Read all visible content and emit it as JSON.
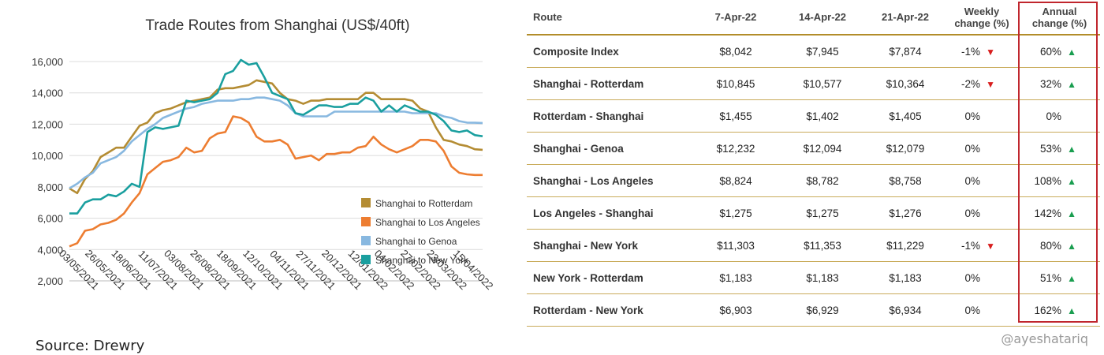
{
  "source": "Source: Drewry",
  "watermark": "@ayeshatariq",
  "chart_data": {
    "type": "line",
    "title": "Trade Routes from Shanghai (US$/40ft)",
    "ylim": [
      2000,
      16000
    ],
    "yticks": [
      "2,000",
      "4,000",
      "6,000",
      "8,000",
      "10,000",
      "12,000",
      "14,000",
      "16,000"
    ],
    "x_tick_labels": [
      "03/05/2021",
      "26/05/2021",
      "18/06/2021",
      "11/07/2021",
      "03/08/2021",
      "26/08/2021",
      "18/09/2021",
      "12/10/2021",
      "04/11/2021",
      "27/11/2021",
      "20/12/2021",
      "12/01/2022",
      "04/02/2022",
      "27/02/2022",
      "23/03/2022",
      "15/04/2022"
    ],
    "grid": true,
    "legend_position": "bottom-right",
    "x": [
      "2021-04-15",
      "2021-04-22",
      "2021-04-29",
      "2021-05-06",
      "2021-05-13",
      "2021-05-20",
      "2021-05-27",
      "2021-06-03",
      "2021-06-10",
      "2021-06-17",
      "2021-06-24",
      "2021-07-01",
      "2021-07-08",
      "2021-07-15",
      "2021-07-22",
      "2021-07-29",
      "2021-08-05",
      "2021-08-12",
      "2021-08-19",
      "2021-08-26",
      "2021-09-02",
      "2021-09-09",
      "2021-09-16",
      "2021-09-23",
      "2021-09-30",
      "2021-10-07",
      "2021-10-14",
      "2021-10-21",
      "2021-10-28",
      "2021-11-04",
      "2021-11-11",
      "2021-11-18",
      "2021-11-25",
      "2021-12-02",
      "2021-12-09",
      "2021-12-16",
      "2021-12-23",
      "2021-12-30",
      "2022-01-06",
      "2022-01-13",
      "2022-01-20",
      "2022-01-27",
      "2022-02-03",
      "2022-02-10",
      "2022-02-17",
      "2022-02-24",
      "2022-03-03",
      "2022-03-10",
      "2022-03-17",
      "2022-03-24",
      "2022-03-31",
      "2022-04-07",
      "2022-04-14",
      "2022-04-21"
    ],
    "series": [
      {
        "name": "Shanghai to Rotterdam",
        "color": "#b48c33",
        "values": [
          7900,
          7600,
          8500,
          9000,
          9900,
          10200,
          10500,
          10500,
          11200,
          11900,
          12100,
          12700,
          12900,
          13000,
          13200,
          13400,
          13500,
          13600,
          13700,
          14200,
          14300,
          14300,
          14400,
          14500,
          14800,
          14700,
          14600,
          14000,
          13600,
          13500,
          13300,
          13500,
          13500,
          13600,
          13600,
          13600,
          13600,
          13600,
          14000,
          14000,
          13600,
          13600,
          13600,
          13600,
          13500,
          13000,
          12800,
          11800,
          11000,
          10900,
          10700,
          10600,
          10400,
          10364
        ]
      },
      {
        "name": "Shanghai to Los Angeles",
        "color": "#ed7d31",
        "values": [
          4200,
          4400,
          5200,
          5300,
          5600,
          5700,
          5900,
          6300,
          7000,
          7600,
          8800,
          9200,
          9600,
          9700,
          9900,
          10500,
          10200,
          10300,
          11100,
          11400,
          11500,
          12500,
          12400,
          12100,
          11200,
          10900,
          10900,
          11000,
          10700,
          9800,
          9900,
          10000,
          9700,
          10100,
          10100,
          10200,
          10200,
          10500,
          10600,
          11200,
          10700,
          10400,
          10200,
          10400,
          10600,
          11000,
          11000,
          10900,
          10300,
          9300,
          8900,
          8800,
          8760,
          8758
        ]
      },
      {
        "name": "Shanghai to Genoa",
        "color": "#88b8e0",
        "values": [
          7900,
          8200,
          8600,
          8900,
          9500,
          9700,
          9900,
          10300,
          10900,
          11300,
          11700,
          12000,
          12400,
          12600,
          12800,
          13000,
          13100,
          13300,
          13400,
          13500,
          13500,
          13500,
          13600,
          13600,
          13700,
          13700,
          13600,
          13500,
          13200,
          12700,
          12500,
          12500,
          12500,
          12500,
          12800,
          12800,
          12800,
          12800,
          12800,
          12800,
          12800,
          12800,
          12800,
          12800,
          12700,
          12700,
          12700,
          12700,
          12500,
          12400,
          12200,
          12100,
          12090,
          12079
        ]
      },
      {
        "name": "Shanghai to New York",
        "color": "#1a9f9f",
        "values": [
          6300,
          6300,
          7000,
          7200,
          7200,
          7500,
          7400,
          7700,
          8200,
          8000,
          11500,
          11800,
          11700,
          11800,
          11900,
          13500,
          13400,
          13500,
          13600,
          14000,
          15200,
          15400,
          16100,
          15800,
          15900,
          15000,
          14000,
          13800,
          13600,
          12700,
          12600,
          12900,
          13200,
          13200,
          13100,
          13100,
          13300,
          13300,
          13700,
          13500,
          12800,
          13200,
          12800,
          13200,
          13000,
          12800,
          12800,
          12600,
          12200,
          11600,
          11500,
          11600,
          11300,
          11229
        ]
      }
    ]
  },
  "table": {
    "headers": {
      "route": "Route",
      "d1": "7-Apr-22",
      "d2": "14-Apr-22",
      "d3": "21-Apr-22",
      "weekly_l1": "Weekly",
      "weekly_l2": "change (%)",
      "annual_l1": "Annual",
      "annual_l2": "change (%)"
    },
    "rows": [
      {
        "route": "Composite Index",
        "d1": "$8,042",
        "d2": "$7,945",
        "d3": "$7,874",
        "weekly": "-1%",
        "weekly_arrow": "down",
        "annual": "60%",
        "annual_arrow": "up"
      },
      {
        "route": "Shanghai - Rotterdam",
        "d1": "$10,845",
        "d2": "$10,577",
        "d3": "$10,364",
        "weekly": "-2%",
        "weekly_arrow": "down",
        "annual": "32%",
        "annual_arrow": "up"
      },
      {
        "route": "Rotterdam - Shanghai",
        "d1": "$1,455",
        "d2": "$1,402",
        "d3": "$1,405",
        "weekly": "0%",
        "weekly_arrow": "none",
        "annual": "0%",
        "annual_arrow": "none"
      },
      {
        "route": "Shanghai - Genoa",
        "d1": "$12,232",
        "d2": "$12,094",
        "d3": "$12,079",
        "weekly": "0%",
        "weekly_arrow": "none",
        "annual": "53%",
        "annual_arrow": "up"
      },
      {
        "route": "Shanghai - Los Angeles",
        "d1": "$8,824",
        "d2": "$8,782",
        "d3": "$8,758",
        "weekly": "0%",
        "weekly_arrow": "none",
        "annual": "108%",
        "annual_arrow": "up"
      },
      {
        "route": "Los Angeles - Shanghai",
        "d1": "$1,275",
        "d2": "$1,275",
        "d3": "$1,276",
        "weekly": "0%",
        "weekly_arrow": "none",
        "annual": "142%",
        "annual_arrow": "up"
      },
      {
        "route": "Shanghai - New York",
        "d1": "$11,303",
        "d2": "$11,353",
        "d3": "$11,229",
        "weekly": "-1%",
        "weekly_arrow": "down",
        "annual": "80%",
        "annual_arrow": "up"
      },
      {
        "route": "New York - Rotterdam",
        "d1": "$1,183",
        "d2": "$1,183",
        "d3": "$1,183",
        "weekly": "0%",
        "weekly_arrow": "none",
        "annual": "51%",
        "annual_arrow": "up"
      },
      {
        "route": "Rotterdam - New York",
        "d1": "$6,903",
        "d2": "$6,929",
        "d3": "$6,934",
        "weekly": "0%",
        "weekly_arrow": "none",
        "annual": "162%",
        "annual_arrow": "up"
      }
    ]
  }
}
